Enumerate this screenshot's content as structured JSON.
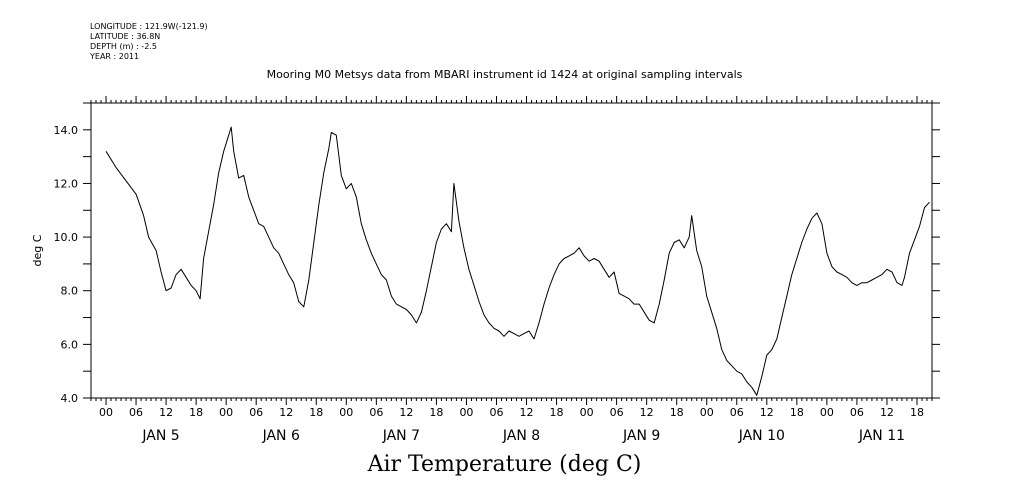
{
  "header": {
    "meta": [
      "LONGITUDE : 121.9W(-121.9)",
      "LATITUDE : 36.8N",
      "DEPTH (m) : -2.5",
      "YEAR : 2011"
    ]
  },
  "chart_data": {
    "type": "line",
    "title": "Mooring M0 Metsys data from MBARI instrument id 1424 at original sampling intervals",
    "xlabel": "Air Temperature (deg C)",
    "ylabel": "deg C",
    "xlim_hours": [
      -3,
      165
    ],
    "ylim": [
      4.0,
      15.0
    ],
    "y_ticks_labeled": [
      "4.0",
      "6.0",
      "8.0",
      "10.0",
      "12.0",
      "14.0"
    ],
    "x_hour_labels": [
      "00",
      "06",
      "12",
      "18"
    ],
    "day_labels": [
      "JAN  5",
      "JAN  6",
      "JAN  7",
      "JAN  8",
      "JAN  9",
      "JAN 10",
      "JAN 11"
    ],
    "series": [
      {
        "name": "Air Temperature",
        "points": [
          [
            0,
            13.2
          ],
          [
            2,
            12.6
          ],
          [
            4,
            12.1
          ],
          [
            6,
            11.6
          ],
          [
            7.5,
            10.8
          ],
          [
            8.5,
            10.0
          ],
          [
            10,
            9.5
          ],
          [
            11,
            8.7
          ],
          [
            12,
            8.0
          ],
          [
            13,
            8.1
          ],
          [
            14,
            8.6
          ],
          [
            15,
            8.8
          ],
          [
            16,
            8.5
          ],
          [
            17,
            8.2
          ],
          [
            18,
            8.0
          ],
          [
            18.8,
            7.7
          ],
          [
            19.5,
            9.2
          ],
          [
            20.5,
            10.2
          ],
          [
            21.5,
            11.2
          ],
          [
            22.5,
            12.4
          ],
          [
            23.5,
            13.2
          ],
          [
            24.5,
            13.8
          ],
          [
            25,
            14.1
          ],
          [
            25.5,
            13.2
          ],
          [
            26.5,
            12.2
          ],
          [
            27.5,
            12.3
          ],
          [
            28.5,
            11.5
          ],
          [
            29.5,
            11.0
          ],
          [
            30.5,
            10.5
          ],
          [
            31.5,
            10.4
          ],
          [
            32.5,
            10.0
          ],
          [
            33.5,
            9.6
          ],
          [
            34.5,
            9.4
          ],
          [
            35.5,
            9.0
          ],
          [
            36.5,
            8.6
          ],
          [
            37.5,
            8.3
          ],
          [
            38.5,
            7.6
          ],
          [
            39.5,
            7.4
          ],
          [
            40.5,
            8.4
          ],
          [
            41.5,
            9.8
          ],
          [
            42.5,
            11.2
          ],
          [
            43.5,
            12.4
          ],
          [
            44.5,
            13.3
          ],
          [
            45,
            13.9
          ],
          [
            46,
            13.8
          ],
          [
            47,
            12.3
          ],
          [
            48,
            11.8
          ],
          [
            49,
            12.0
          ],
          [
            50,
            11.5
          ],
          [
            51,
            10.5
          ],
          [
            52,
            9.9
          ],
          [
            53,
            9.4
          ],
          [
            54,
            9.0
          ],
          [
            55,
            8.6
          ],
          [
            56,
            8.4
          ],
          [
            57,
            7.8
          ],
          [
            58,
            7.5
          ],
          [
            59,
            7.4
          ],
          [
            60,
            7.3
          ],
          [
            61,
            7.1
          ],
          [
            62,
            6.8
          ],
          [
            63,
            7.2
          ],
          [
            64,
            8.0
          ],
          [
            65,
            8.9
          ],
          [
            66,
            9.8
          ],
          [
            67,
            10.3
          ],
          [
            68,
            10.5
          ],
          [
            69,
            10.2
          ],
          [
            69.5,
            12.0
          ],
          [
            70.5,
            10.6
          ],
          [
            71.5,
            9.6
          ],
          [
            72.5,
            8.8
          ],
          [
            73.5,
            8.2
          ],
          [
            74.5,
            7.6
          ],
          [
            75.5,
            7.1
          ],
          [
            76.5,
            6.8
          ],
          [
            77.5,
            6.6
          ],
          [
            78.5,
            6.5
          ],
          [
            79.5,
            6.3
          ],
          [
            80.5,
            6.5
          ],
          [
            81.5,
            6.4
          ],
          [
            82.5,
            6.3
          ],
          [
            83.5,
            6.4
          ],
          [
            84.5,
            6.5
          ],
          [
            85.5,
            6.2
          ],
          [
            86.5,
            6.8
          ],
          [
            87.5,
            7.5
          ],
          [
            88.5,
            8.1
          ],
          [
            89.5,
            8.6
          ],
          [
            90.5,
            9.0
          ],
          [
            91.5,
            9.2
          ],
          [
            92.5,
            9.3
          ],
          [
            93.5,
            9.4
          ],
          [
            94.5,
            9.6
          ],
          [
            95.5,
            9.3
          ],
          [
            96.5,
            9.1
          ],
          [
            97.5,
            9.2
          ],
          [
            98.5,
            9.1
          ],
          [
            99.5,
            8.8
          ],
          [
            100.5,
            8.5
          ],
          [
            101.5,
            8.7
          ],
          [
            102.5,
            7.9
          ],
          [
            103.5,
            7.8
          ],
          [
            104.5,
            7.7
          ],
          [
            105.5,
            7.5
          ],
          [
            106.5,
            7.5
          ],
          [
            107.5,
            7.2
          ],
          [
            108.5,
            6.9
          ],
          [
            109.5,
            6.8
          ],
          [
            110.5,
            7.5
          ],
          [
            111.5,
            8.4
          ],
          [
            112.5,
            9.4
          ],
          [
            113.5,
            9.8
          ],
          [
            114.5,
            9.9
          ],
          [
            115.5,
            9.6
          ],
          [
            116.5,
            10.0
          ],
          [
            117,
            10.8
          ],
          [
            118,
            9.5
          ],
          [
            119,
            8.9
          ],
          [
            120,
            7.8
          ],
          [
            121,
            7.2
          ],
          [
            122,
            6.6
          ],
          [
            123,
            5.8
          ],
          [
            124,
            5.4
          ],
          [
            125,
            5.2
          ],
          [
            126,
            5.0
          ],
          [
            127,
            4.9
          ],
          [
            128,
            4.6
          ],
          [
            129,
            4.4
          ],
          [
            130,
            4.1
          ],
          [
            131,
            4.8
          ],
          [
            132,
            5.6
          ],
          [
            133,
            5.8
          ],
          [
            134,
            6.2
          ],
          [
            135,
            7.0
          ],
          [
            136,
            7.8
          ],
          [
            137,
            8.6
          ],
          [
            138,
            9.2
          ],
          [
            139,
            9.8
          ],
          [
            140,
            10.3
          ],
          [
            141,
            10.7
          ],
          [
            142,
            10.9
          ],
          [
            143,
            10.5
          ],
          [
            144,
            9.4
          ],
          [
            145,
            8.9
          ],
          [
            146,
            8.7
          ],
          [
            147,
            8.6
          ],
          [
            148,
            8.5
          ],
          [
            149,
            8.3
          ],
          [
            150,
            8.2
          ],
          [
            151,
            8.3
          ],
          [
            152,
            8.3
          ],
          [
            153,
            8.4
          ],
          [
            154,
            8.5
          ],
          [
            155,
            8.6
          ],
          [
            156,
            8.8
          ],
          [
            157,
            8.7
          ],
          [
            158,
            8.3
          ],
          [
            159,
            8.2
          ],
          [
            159.5,
            8.5
          ],
          [
            160.5,
            9.4
          ],
          [
            161.5,
            9.9
          ],
          [
            162.5,
            10.4
          ],
          [
            163.5,
            11.1
          ],
          [
            164.5,
            11.3
          ]
        ]
      }
    ]
  }
}
